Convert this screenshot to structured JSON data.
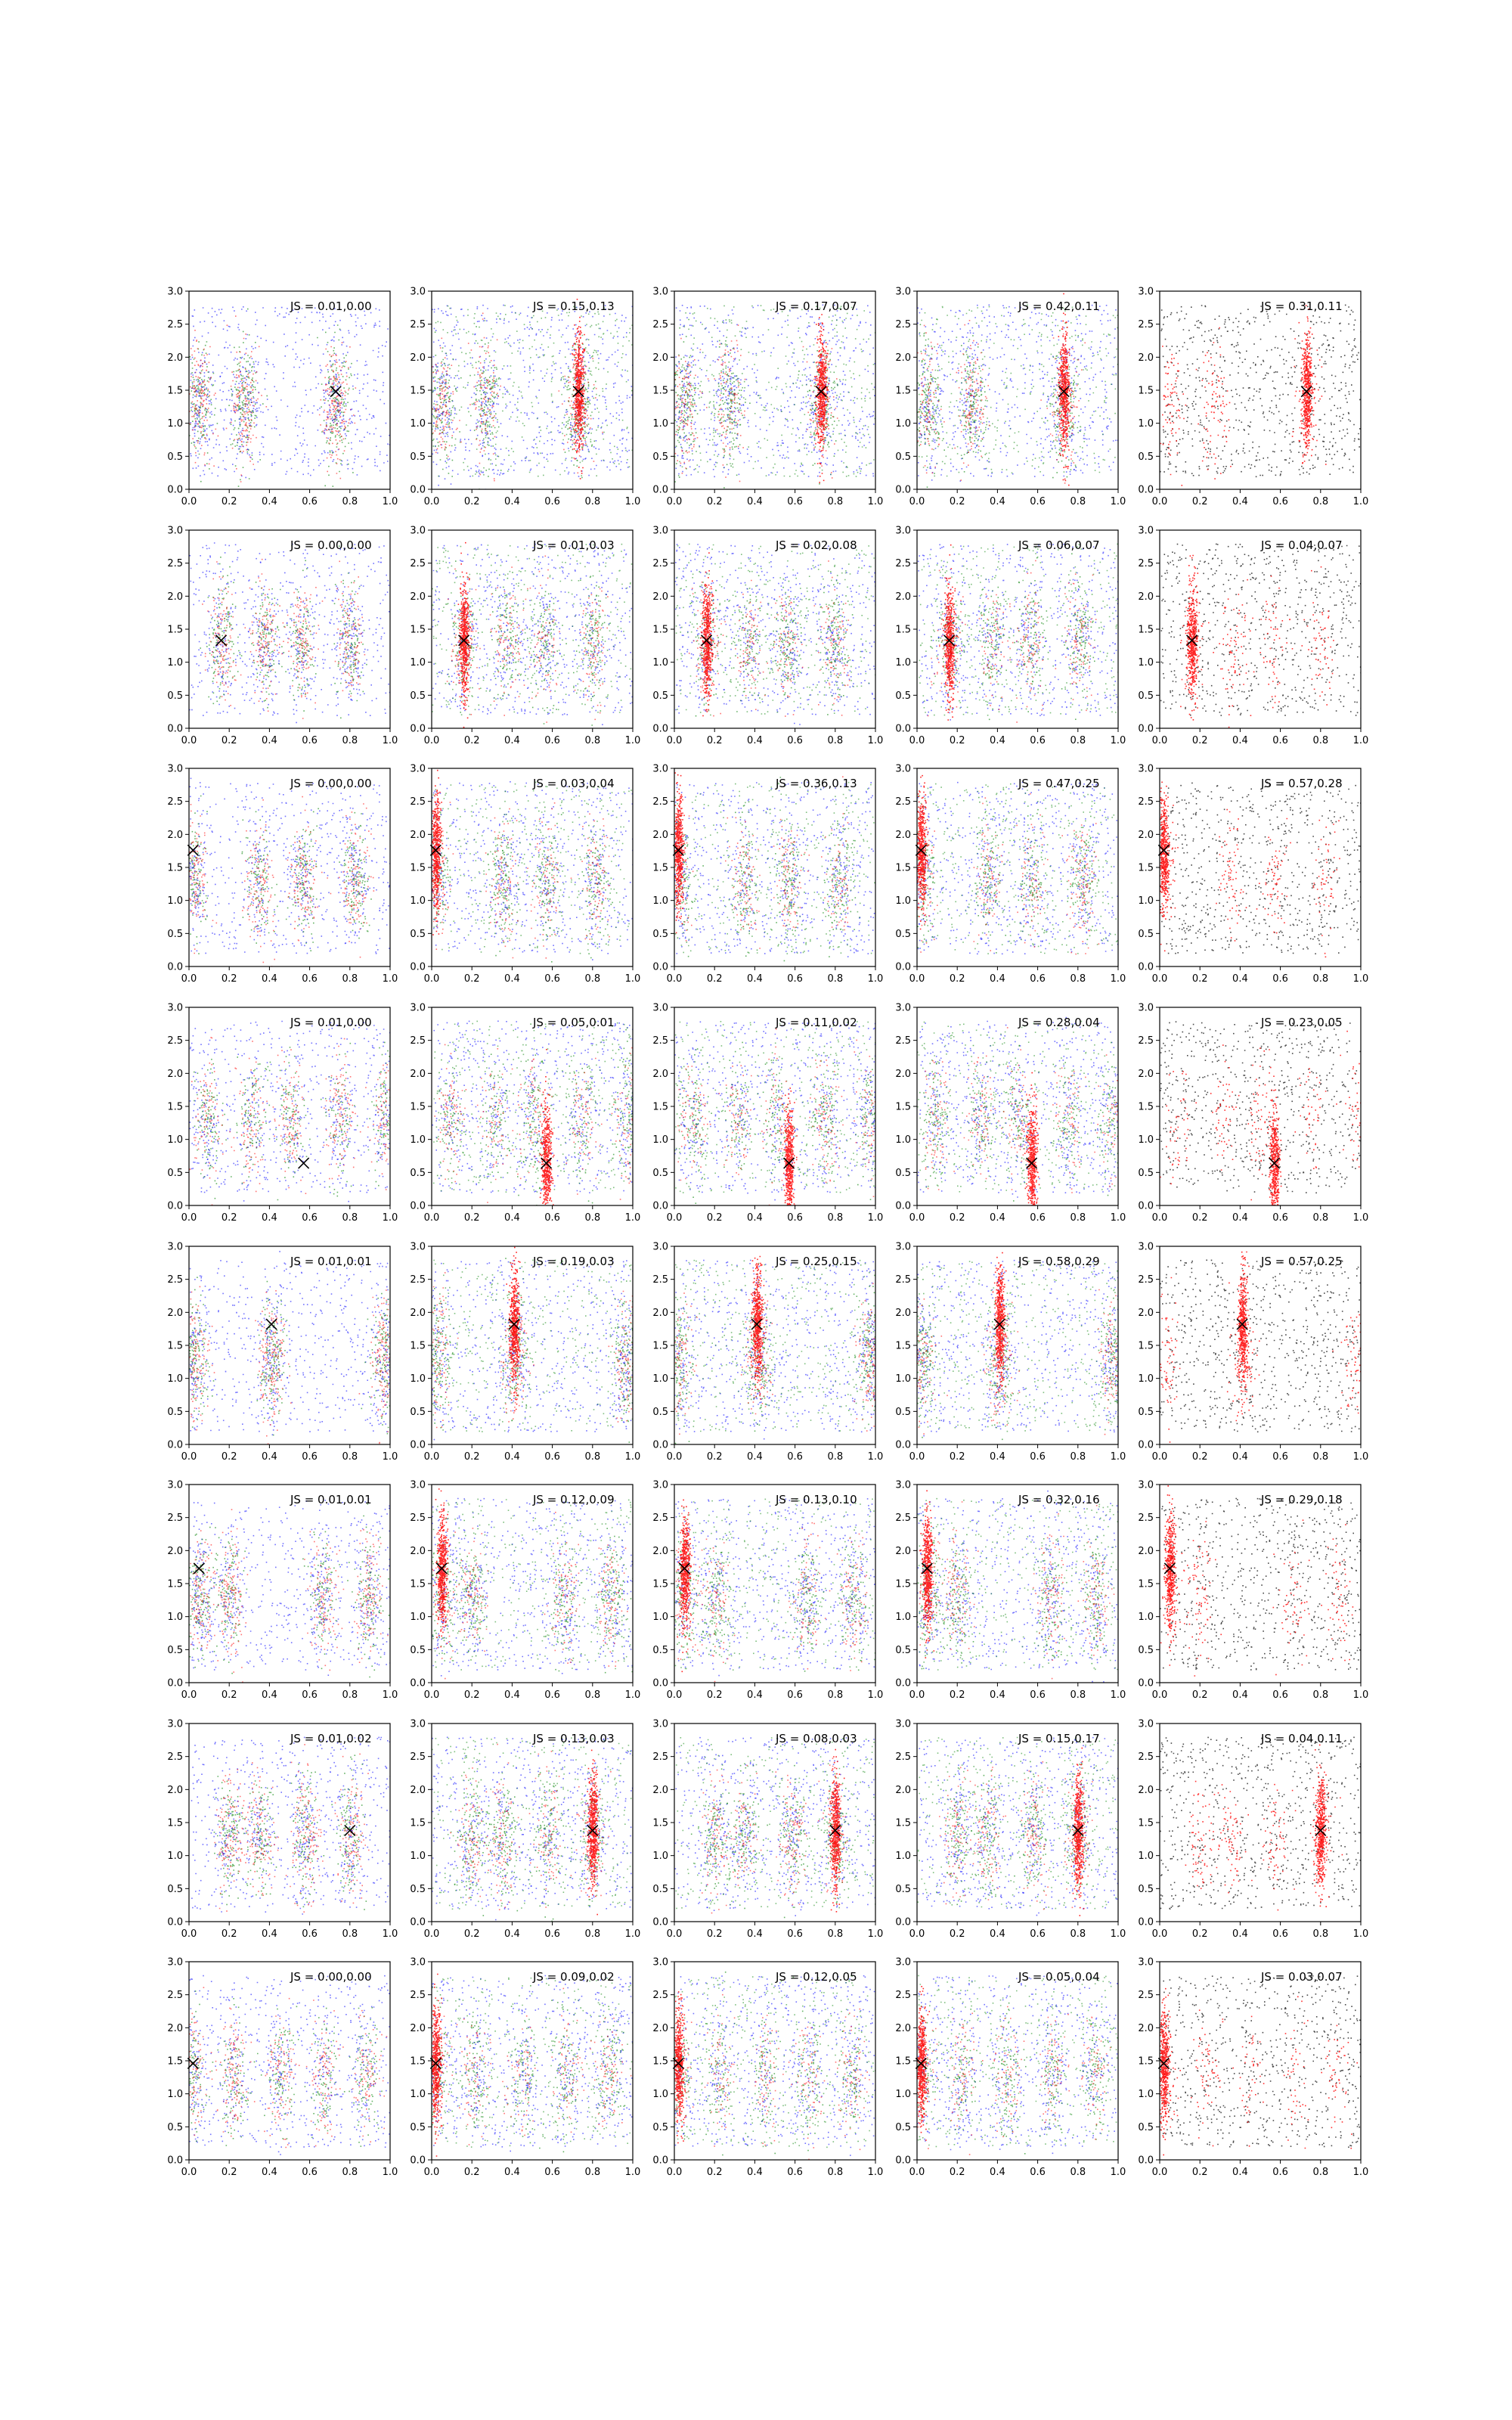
{
  "figure": {
    "rows": 8,
    "cols": 5
  },
  "axes": {
    "xlim": [
      0,
      1
    ],
    "ylim": [
      0,
      3
    ],
    "xticks": [
      "0.0",
      "0.2",
      "0.4",
      "0.6",
      "0.8",
      "1.0"
    ],
    "yticks": [
      "0.0",
      "0.5",
      "1.0",
      "1.5",
      "2.0",
      "2.5",
      "3.0"
    ]
  },
  "colors": {
    "red": "#ff0000",
    "green": "#008000",
    "blue": "#0000ff",
    "black": "#000000"
  },
  "chart_data": {
    "type": "scatter",
    "note_of_marks": "small dots colored red/green/blue/black; x marker per panel",
    "grid": false,
    "panels": [
      {
        "row": 0,
        "col": 0,
        "js": "JS = 0.01,0.00",
        "marker": [
          0.73,
          1.48
        ]
      },
      {
        "row": 0,
        "col": 1,
        "js": "JS = 0.15,0.13",
        "marker": [
          0.73,
          1.48
        ]
      },
      {
        "row": 0,
        "col": 2,
        "js": "JS = 0.17,0.07",
        "marker": [
          0.73,
          1.48
        ]
      },
      {
        "row": 0,
        "col": 3,
        "js": "JS = 0.42,0.11",
        "marker": [
          0.73,
          1.48
        ]
      },
      {
        "row": 0,
        "col": 4,
        "js": "JS = 0.31,0.11",
        "marker": [
          0.73,
          1.48
        ]
      },
      {
        "row": 1,
        "col": 0,
        "js": "JS = 0.00,0.00",
        "marker": [
          0.16,
          1.33
        ]
      },
      {
        "row": 1,
        "col": 1,
        "js": "JS = 0.01,0.03",
        "marker": [
          0.16,
          1.33
        ]
      },
      {
        "row": 1,
        "col": 2,
        "js": "JS = 0.02,0.08",
        "marker": [
          0.16,
          1.33
        ]
      },
      {
        "row": 1,
        "col": 3,
        "js": "JS = 0.06,0.07",
        "marker": [
          0.16,
          1.33
        ]
      },
      {
        "row": 1,
        "col": 4,
        "js": "JS = 0.04,0.07",
        "marker": [
          0.16,
          1.33
        ]
      },
      {
        "row": 2,
        "col": 0,
        "js": "JS = 0.00,0.00",
        "marker": [
          0.02,
          1.76
        ]
      },
      {
        "row": 2,
        "col": 1,
        "js": "JS = 0.03,0.04",
        "marker": [
          0.02,
          1.76
        ]
      },
      {
        "row": 2,
        "col": 2,
        "js": "JS = 0.36,0.13",
        "marker": [
          0.02,
          1.76
        ]
      },
      {
        "row": 2,
        "col": 3,
        "js": "JS = 0.47,0.25",
        "marker": [
          0.02,
          1.76
        ]
      },
      {
        "row": 2,
        "col": 4,
        "js": "JS = 0.57,0.28",
        "marker": [
          0.02,
          1.76
        ]
      },
      {
        "row": 3,
        "col": 0,
        "js": "JS = 0.01,0.00",
        "marker": [
          0.57,
          0.64
        ]
      },
      {
        "row": 3,
        "col": 1,
        "js": "JS = 0.05,0.01",
        "marker": [
          0.57,
          0.64
        ]
      },
      {
        "row": 3,
        "col": 2,
        "js": "JS = 0.11,0.02",
        "marker": [
          0.57,
          0.64
        ]
      },
      {
        "row": 3,
        "col": 3,
        "js": "JS = 0.28,0.04",
        "marker": [
          0.57,
          0.64
        ]
      },
      {
        "row": 3,
        "col": 4,
        "js": "JS = 0.23,0.05",
        "marker": [
          0.57,
          0.64
        ]
      },
      {
        "row": 4,
        "col": 0,
        "js": "JS = 0.01,0.01",
        "marker": [
          0.41,
          1.82
        ]
      },
      {
        "row": 4,
        "col": 1,
        "js": "JS = 0.19,0.03",
        "marker": [
          0.41,
          1.82
        ]
      },
      {
        "row": 4,
        "col": 2,
        "js": "JS = 0.25,0.15",
        "marker": [
          0.41,
          1.82
        ]
      },
      {
        "row": 4,
        "col": 3,
        "js": "JS = 0.58,0.29",
        "marker": [
          0.41,
          1.82
        ]
      },
      {
        "row": 4,
        "col": 4,
        "js": "JS = 0.57,0.25",
        "marker": [
          0.41,
          1.82
        ]
      },
      {
        "row": 5,
        "col": 0,
        "js": "JS = 0.01,0.01",
        "marker": [
          0.05,
          1.73
        ]
      },
      {
        "row": 5,
        "col": 1,
        "js": "JS = 0.12,0.09",
        "marker": [
          0.05,
          1.73
        ]
      },
      {
        "row": 5,
        "col": 2,
        "js": "JS = 0.13,0.10",
        "marker": [
          0.05,
          1.73
        ]
      },
      {
        "row": 5,
        "col": 3,
        "js": "JS = 0.32,0.16",
        "marker": [
          0.05,
          1.73
        ]
      },
      {
        "row": 5,
        "col": 4,
        "js": "JS = 0.29,0.18",
        "marker": [
          0.05,
          1.73
        ]
      },
      {
        "row": 6,
        "col": 0,
        "js": "JS = 0.01,0.02",
        "marker": [
          0.8,
          1.38
        ]
      },
      {
        "row": 6,
        "col": 1,
        "js": "JS = 0.13,0.03",
        "marker": [
          0.8,
          1.38
        ]
      },
      {
        "row": 6,
        "col": 2,
        "js": "JS = 0.08,0.03",
        "marker": [
          0.8,
          1.38
        ]
      },
      {
        "row": 6,
        "col": 3,
        "js": "JS = 0.15,0.17",
        "marker": [
          0.8,
          1.38
        ]
      },
      {
        "row": 6,
        "col": 4,
        "js": "JS = 0.04,0.11",
        "marker": [
          0.8,
          1.38
        ]
      },
      {
        "row": 7,
        "col": 0,
        "js": "JS = 0.00,0.00",
        "marker": [
          0.02,
          1.46
        ]
      },
      {
        "row": 7,
        "col": 1,
        "js": "JS = 0.09,0.02",
        "marker": [
          0.02,
          1.46
        ]
      },
      {
        "row": 7,
        "col": 2,
        "js": "JS = 0.12,0.05",
        "marker": [
          0.02,
          1.46
        ]
      },
      {
        "row": 7,
        "col": 3,
        "js": "JS = 0.05,0.04",
        "marker": [
          0.02,
          1.46
        ]
      },
      {
        "row": 7,
        "col": 4,
        "js": "JS = 0.03,0.07",
        "marker": [
          0.02,
          1.46
        ]
      }
    ]
  }
}
